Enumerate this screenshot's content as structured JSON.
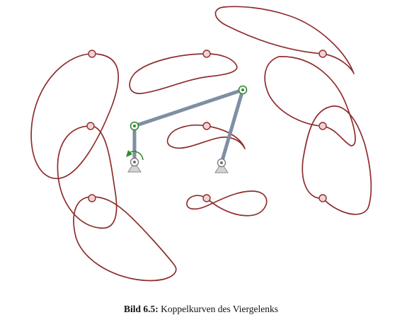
{
  "figure": {
    "caption_label": "Bild 6.5:",
    "caption_text": " Koppelkurven des Viergelenks"
  },
  "colors": {
    "curve": "#8e2d2d",
    "link": "#7f8fa3",
    "joint": "#2f8a2f",
    "ground": "#8a8a8a"
  }
}
